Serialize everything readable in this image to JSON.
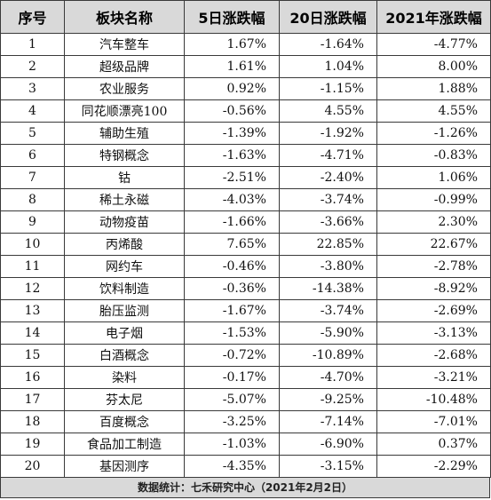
{
  "headers": [
    "序号",
    "板块名称",
    "5日涨跌幅",
    "20日涨跌幅",
    "2021年涨跌幅"
  ],
  "rows": [
    [
      "1",
      "汽车整车",
      "1.67%",
      "-1.64%",
      "-4.77%"
    ],
    [
      "2",
      "超级品牌",
      "1.61%",
      "1.04%",
      "8.00%"
    ],
    [
      "3",
      "农业服务",
      "0.92%",
      "-1.15%",
      "1.88%"
    ],
    [
      "4",
      "同花顺漂亮100",
      "-0.56%",
      "4.55%",
      "4.55%"
    ],
    [
      "5",
      "辅助生殖",
      "-1.39%",
      "-1.92%",
      "-1.26%"
    ],
    [
      "6",
      "特钢概念",
      "-1.63%",
      "-4.71%",
      "-0.83%"
    ],
    [
      "7",
      "钴",
      "-2.51%",
      "-2.40%",
      "1.06%"
    ],
    [
      "8",
      "稀土永磁",
      "-4.03%",
      "-3.74%",
      "-0.99%"
    ],
    [
      "9",
      "动物疫苗",
      "-1.66%",
      "-3.66%",
      "2.30%"
    ],
    [
      "10",
      "丙烯酸",
      "7.65%",
      "22.85%",
      "22.67%"
    ],
    [
      "11",
      "网约车",
      "-0.46%",
      "-3.80%",
      "-2.78%"
    ],
    [
      "12",
      "饮料制造",
      "-0.36%",
      "-14.38%",
      "-8.92%"
    ],
    [
      "13",
      "胎压监测",
      "-1.67%",
      "-3.74%",
      "-2.69%"
    ],
    [
      "14",
      "电子烟",
      "-1.53%",
      "-5.90%",
      "-3.13%"
    ],
    [
      "15",
      "白酒概念",
      "-0.72%",
      "-10.89%",
      "-2.68%"
    ],
    [
      "16",
      "染料",
      "-0.17%",
      "-4.70%",
      "-3.21%"
    ],
    [
      "17",
      "芬太尼",
      "-5.07%",
      "-9.25%",
      "-10.48%"
    ],
    [
      "18",
      "百度概念",
      "-3.25%",
      "-7.14%",
      "-7.01%"
    ],
    [
      "19",
      "食品加工制造",
      "-1.03%",
      "-6.90%",
      "0.37%"
    ],
    [
      "20",
      "基因测序",
      "-4.35%",
      "-3.15%",
      "-2.29%"
    ]
  ],
  "footer": "数据统计：七禾研究中心（2021年2月2日）",
  "colors": {
    "header_bg": "#d9d9d9",
    "border": "#3a3a3a",
    "text": "#111111"
  }
}
